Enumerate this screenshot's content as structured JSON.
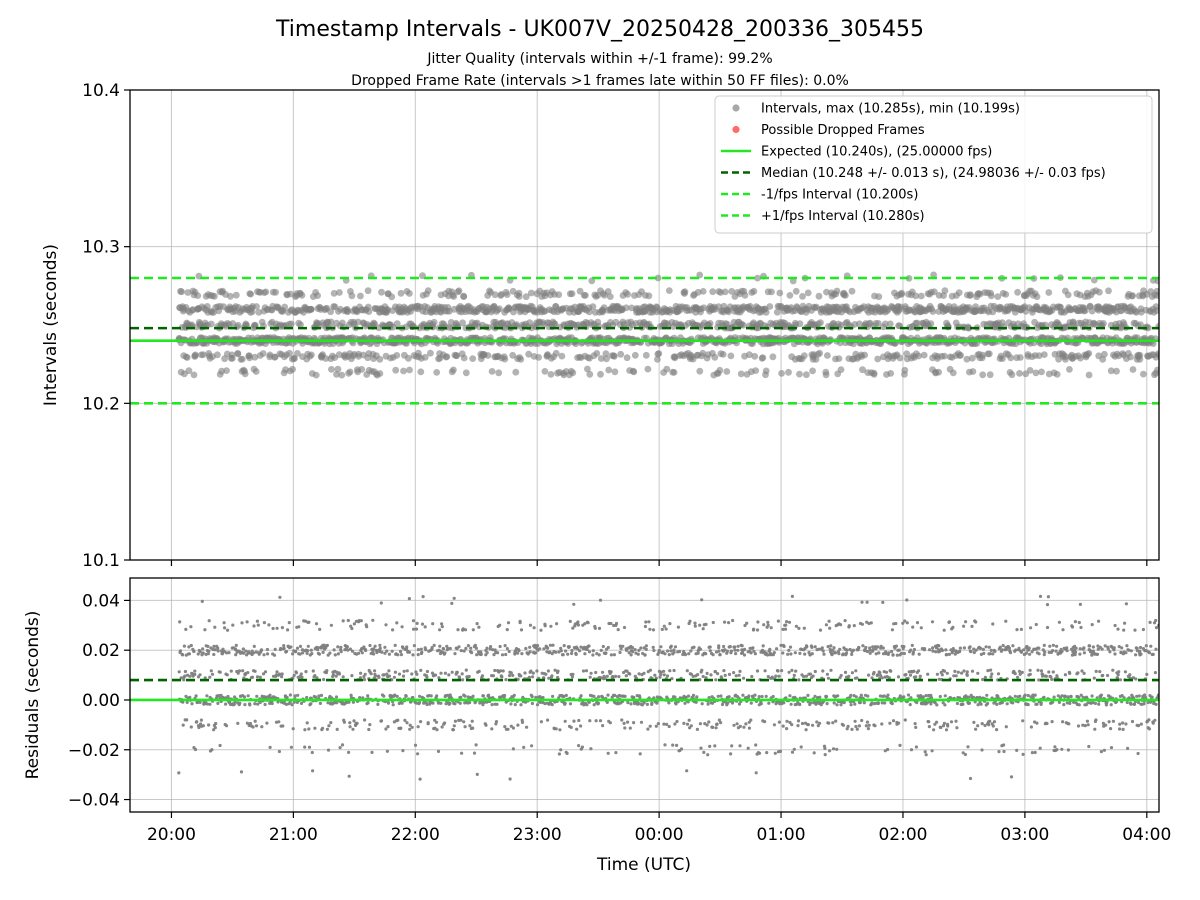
{
  "chart_data": {
    "type": "scatter",
    "title": "Timestamp Intervals - UK007V_20250428_200336_305455",
    "subtitle_lines": [
      "Jitter Quality (intervals within +/-1 frame): 99.2%",
      "Dropped Frame Rate (intervals >1 frames late within 50 FF files): 0.0%"
    ],
    "xlabel": "Time (UTC)",
    "x_ticks": [
      "20:00",
      "21:00",
      "22:00",
      "23:00",
      "00:00",
      "01:00",
      "02:00",
      "03:00",
      "04:00"
    ],
    "x_range_hours": [
      19.66,
      28.1
    ],
    "data_time_range_hours": [
      20.06,
      28.1
    ],
    "grid": true,
    "legend_position": "upper right",
    "colors": {
      "points": "#808080",
      "dropped": "#ff5a5a",
      "expected": "#22e822",
      "median": "#006400",
      "bounds": "#22e822"
    },
    "top_panel": {
      "ylabel": "Intervals (seconds)",
      "ylim": [
        10.1,
        10.4
      ],
      "y_ticks": [
        "10.1",
        "10.2",
        "10.3",
        "10.4"
      ],
      "interval_max": 10.285,
      "interval_min": 10.199,
      "dominant_levels": [
        10.24,
        10.26,
        10.25,
        10.23,
        10.27,
        10.22,
        10.28
      ],
      "level_weights": [
        0.33,
        0.27,
        0.17,
        0.1,
        0.08,
        0.04,
        0.01
      ],
      "lines": {
        "expected": 10.24,
        "median": 10.248,
        "minus_bound": 10.2,
        "plus_bound": 10.28
      }
    },
    "bottom_panel": {
      "ylabel": "Residuals (seconds)",
      "ylim": [
        -0.045,
        0.049
      ],
      "y_ticks": [
        "−0.04",
        "−0.02",
        "0.00",
        "0.02",
        "0.04"
      ],
      "residual_max": 0.045,
      "residual_min": -0.041,
      "dominant_levels": [
        0.0,
        0.02,
        0.01,
        -0.01,
        0.03,
        -0.02,
        0.04,
        -0.03
      ],
      "level_weights": [
        0.33,
        0.27,
        0.17,
        0.1,
        0.08,
        0.04,
        0.005,
        0.005
      ],
      "lines": {
        "zero": 0.0,
        "median": 0.008
      }
    },
    "legend": [
      {
        "label": "Intervals, max (10.285s), min (10.199s)",
        "kind": "marker",
        "color": "#a8a8a8"
      },
      {
        "label": "Possible Dropped Frames",
        "kind": "marker",
        "color": "#ff6b6b"
      },
      {
        "label": "Expected (10.240s), (25.00000 fps)",
        "kind": "solid",
        "color": "#22e822"
      },
      {
        "label": "Median (10.248 +/- 0.013 s), (24.98036 +/- 0.03 fps)",
        "kind": "dashed",
        "color": "#006400"
      },
      {
        "label": "-1/fps Interval (10.200s)",
        "kind": "dashed",
        "color": "#22e822"
      },
      {
        "label": "+1/fps Interval (10.280s)",
        "kind": "dashed",
        "color": "#22e822"
      }
    ],
    "point_count": 2800
  }
}
